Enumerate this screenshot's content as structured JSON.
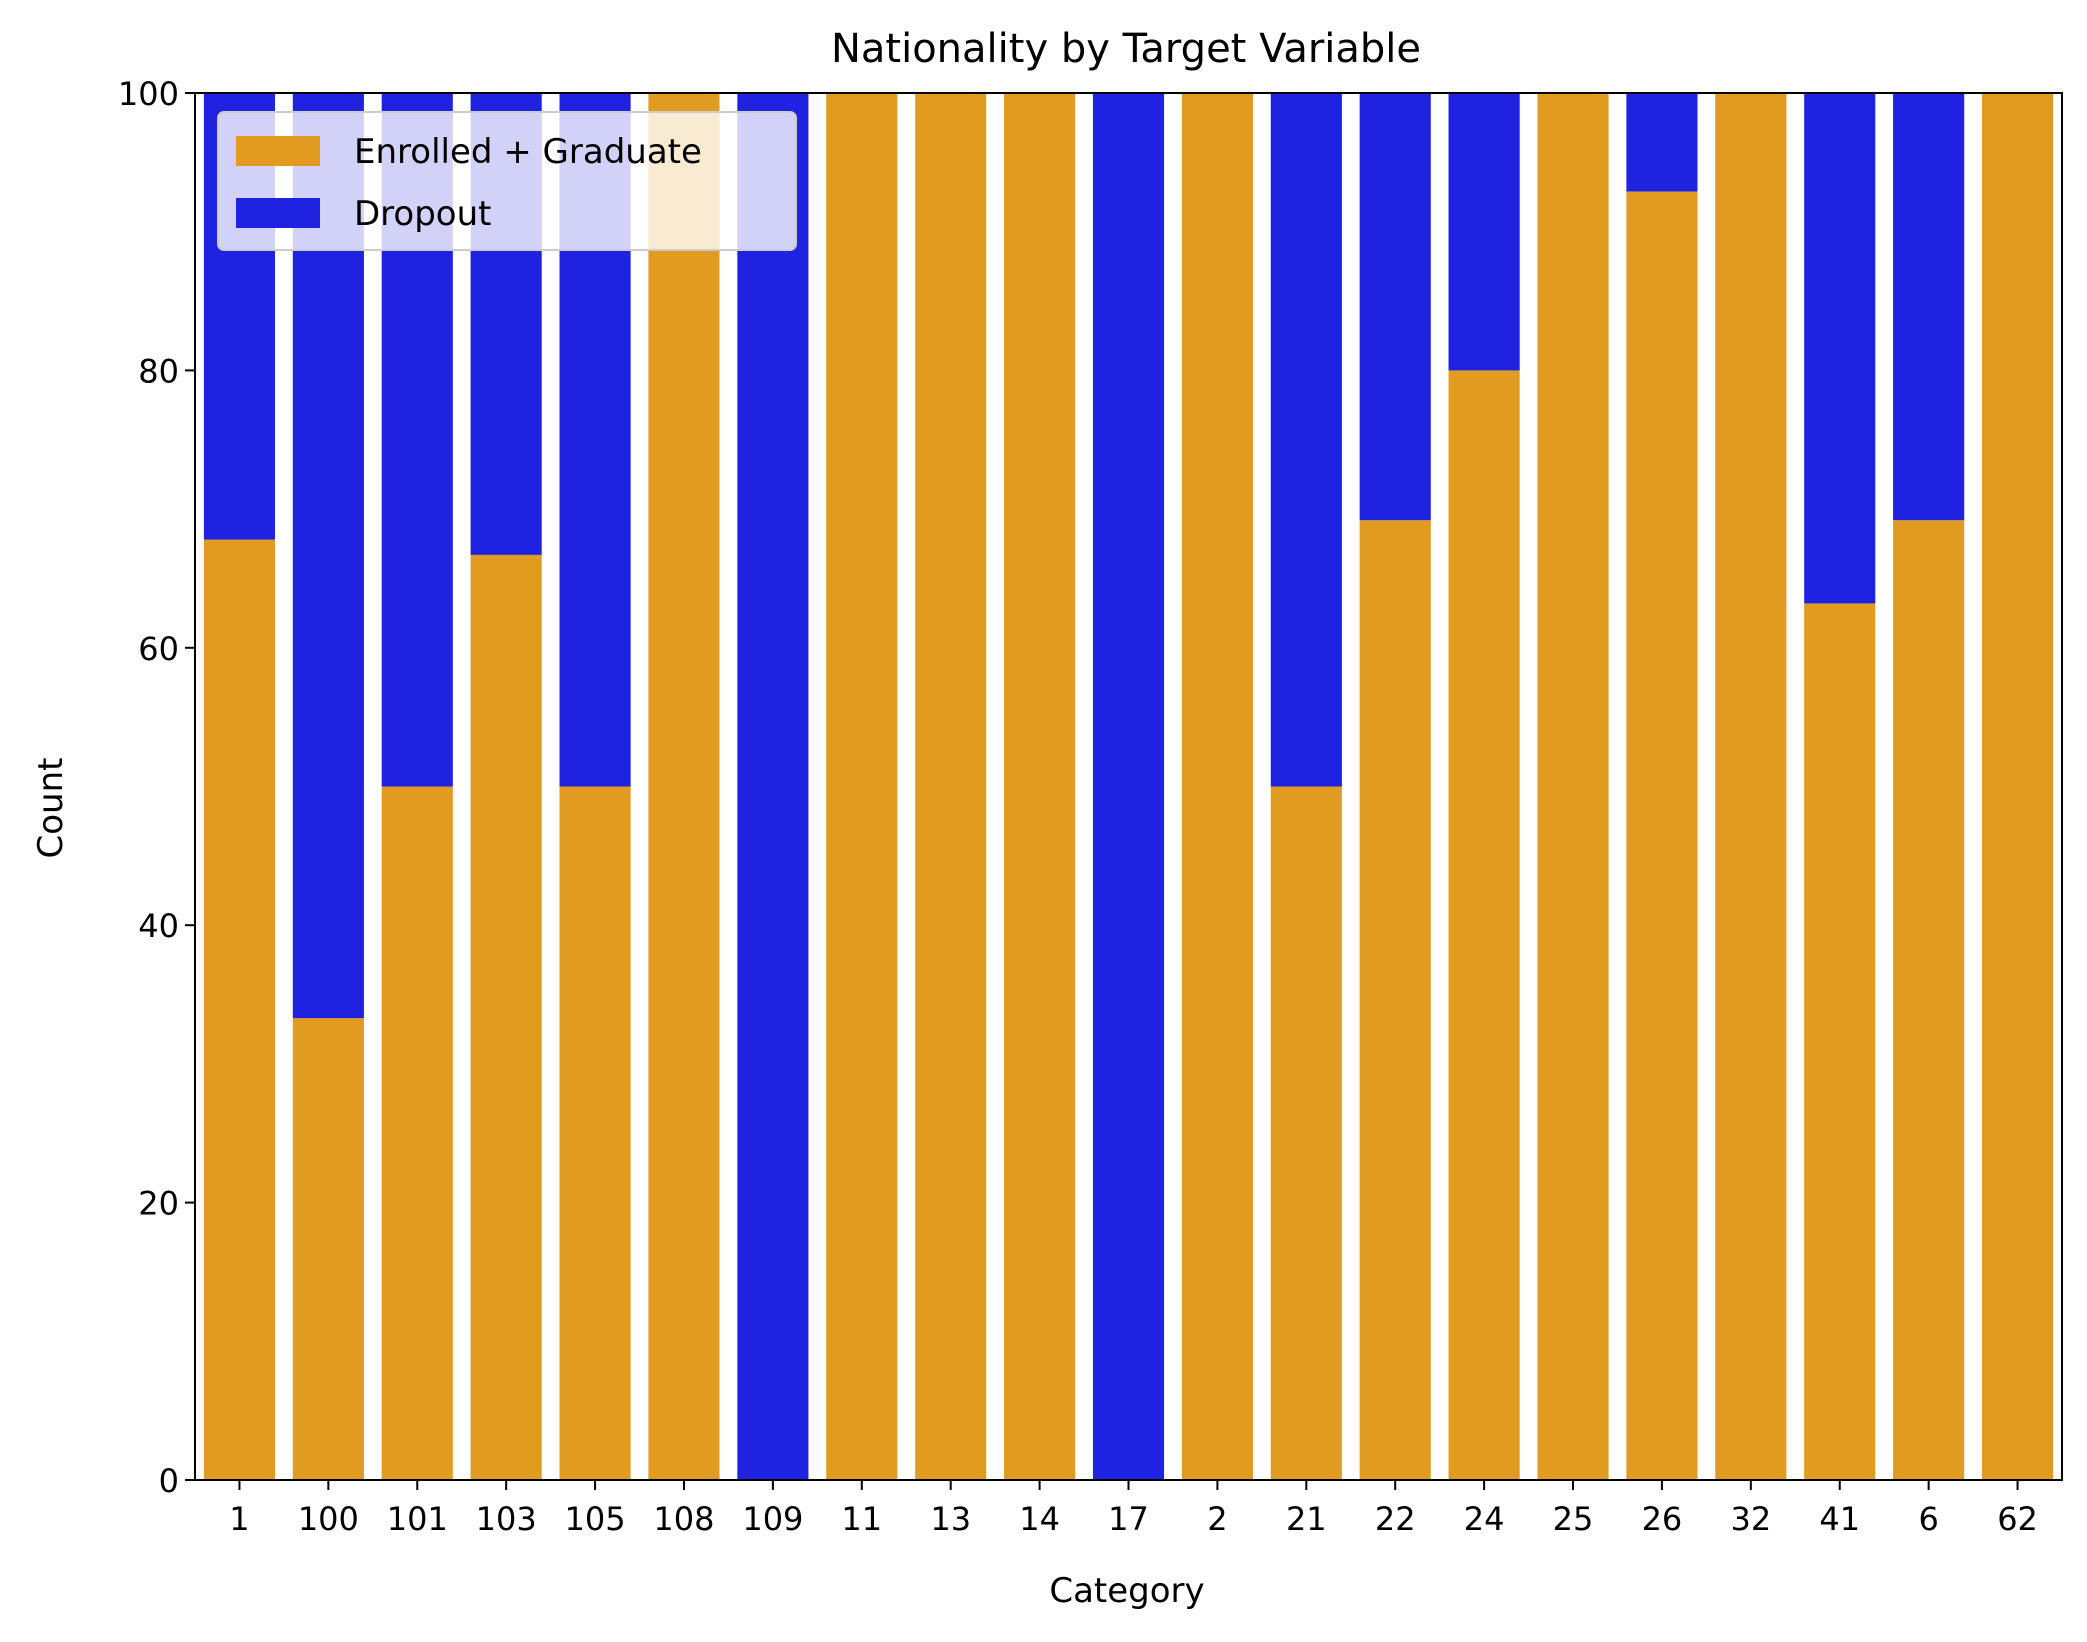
{
  "chart_data": {
    "type": "bar",
    "stacked": true,
    "title": "Nationality by Target Variable",
    "xlabel": "Category",
    "ylabel": "Count",
    "ylim": [
      0,
      100
    ],
    "yticks": [
      0,
      20,
      40,
      60,
      80,
      100
    ],
    "grid": false,
    "legend_position": "top-left",
    "categories": [
      "1",
      "100",
      "101",
      "103",
      "105",
      "108",
      "109",
      "11",
      "13",
      "14",
      "17",
      "2",
      "21",
      "22",
      "24",
      "25",
      "26",
      "32",
      "41",
      "6",
      "62"
    ],
    "series": [
      {
        "name": "Enrolled + Graduate",
        "color": "#e09b20",
        "values": [
          67.8,
          33.3,
          50,
          66.7,
          50,
          100,
          0,
          100,
          100,
          100,
          0,
          100,
          50,
          69.2,
          80,
          100,
          92.9,
          100,
          63.2,
          69.2,
          100
        ]
      },
      {
        "name": "Dropout",
        "color": "#1f22e0",
        "values": [
          32.2,
          66.7,
          50,
          33.3,
          50,
          0,
          100,
          0,
          0,
          0,
          100,
          0,
          50,
          30.8,
          20,
          0,
          7.1,
          0,
          36.8,
          30.8,
          0
        ]
      }
    ]
  }
}
